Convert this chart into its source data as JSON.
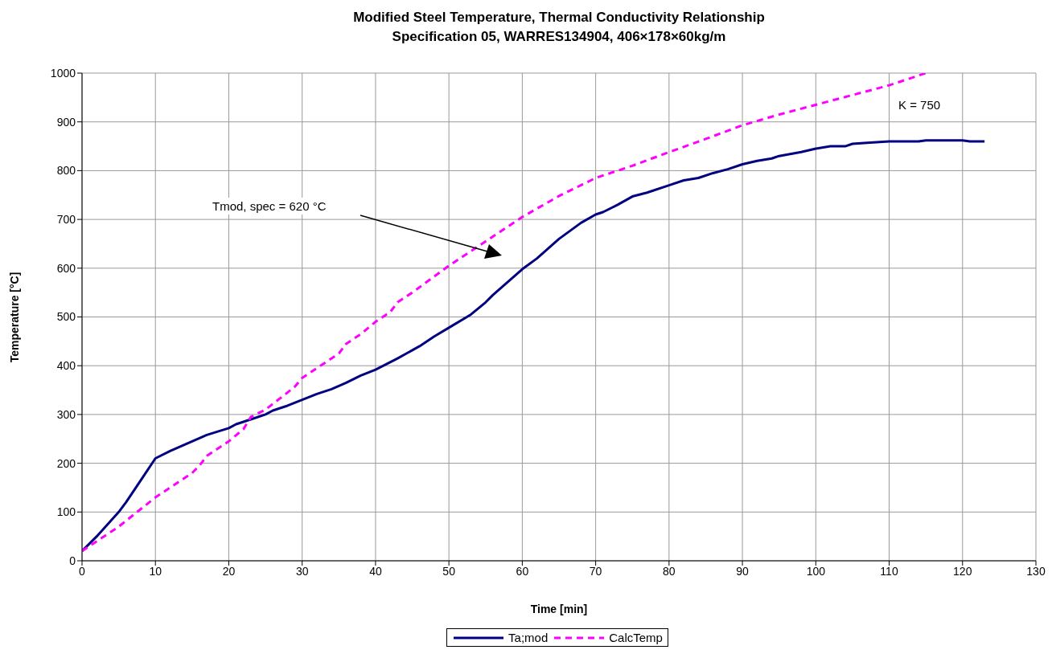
{
  "chart_data": {
    "type": "line",
    "title": "Modified Steel Temperature, Thermal Conductivity Relationship",
    "subtitle": "Specification 05, WARRES134904, 406×178×60kg/m",
    "xlabel": "Time [min]",
    "ylabel": "Temperature [°C]",
    "annotations": [
      "Tmod, spec = 620 °C",
      "K = 750"
    ],
    "xlim": [
      0,
      130
    ],
    "xticks": [
      0,
      10,
      20,
      30,
      40,
      50,
      60,
      70,
      80,
      90,
      100,
      110,
      120,
      130
    ],
    "ylim": [
      0,
      1000
    ],
    "yticks": [
      0,
      100,
      200,
      300,
      400,
      500,
      600,
      700,
      800,
      900,
      1000
    ],
    "grid": true,
    "legend": "bottom",
    "marker": "none",
    "series": [
      {
        "name": "Ta;mod",
        "color": "#000080",
        "line_style": "solid",
        "x": [
          0,
          2,
          5,
          6,
          8,
          10,
          12,
          15,
          17,
          20,
          21,
          23,
          25,
          26,
          28,
          30,
          32,
          34,
          36,
          38,
          40,
          43,
          46,
          48,
          50,
          53,
          55,
          56,
          60,
          62,
          65,
          68,
          70,
          71,
          73,
          75,
          77,
          80,
          82,
          84,
          86,
          88,
          90,
          92,
          94,
          95,
          98,
          100,
          102,
          104,
          105,
          107,
          110,
          114,
          115,
          120,
          121,
          123
        ],
        "values": [
          20,
          50,
          100,
          120,
          165,
          210,
          225,
          245,
          258,
          272,
          280,
          290,
          300,
          308,
          318,
          330,
          342,
          352,
          365,
          380,
          392,
          415,
          440,
          460,
          478,
          505,
          530,
          545,
          598,
          620,
          660,
          693,
          710,
          715,
          730,
          747,
          755,
          770,
          780,
          785,
          795,
          803,
          813,
          820,
          825,
          830,
          838,
          845,
          850,
          850,
          855,
          857,
          860,
          860,
          862,
          862,
          860,
          860
        ]
      },
      {
        "name": "CalcTemp",
        "color": "#ff00ff",
        "line_style": "dashed",
        "x": [
          0,
          5,
          10,
          15,
          16,
          17,
          20,
          22,
          23,
          25,
          28,
          29,
          30,
          33,
          35,
          36,
          38,
          40,
          42,
          43,
          45,
          50,
          55,
          60,
          65,
          70,
          75,
          80,
          85,
          90,
          95,
          100,
          105,
          110,
          113,
          115
        ],
        "values": [
          20,
          70,
          130,
          180,
          195,
          215,
          245,
          270,
          295,
          310,
          345,
          357,
          375,
          405,
          425,
          445,
          465,
          490,
          510,
          530,
          550,
          605,
          655,
          705,
          748,
          785,
          810,
          838,
          865,
          893,
          915,
          935,
          955,
          975,
          990,
          1000
        ]
      }
    ]
  }
}
